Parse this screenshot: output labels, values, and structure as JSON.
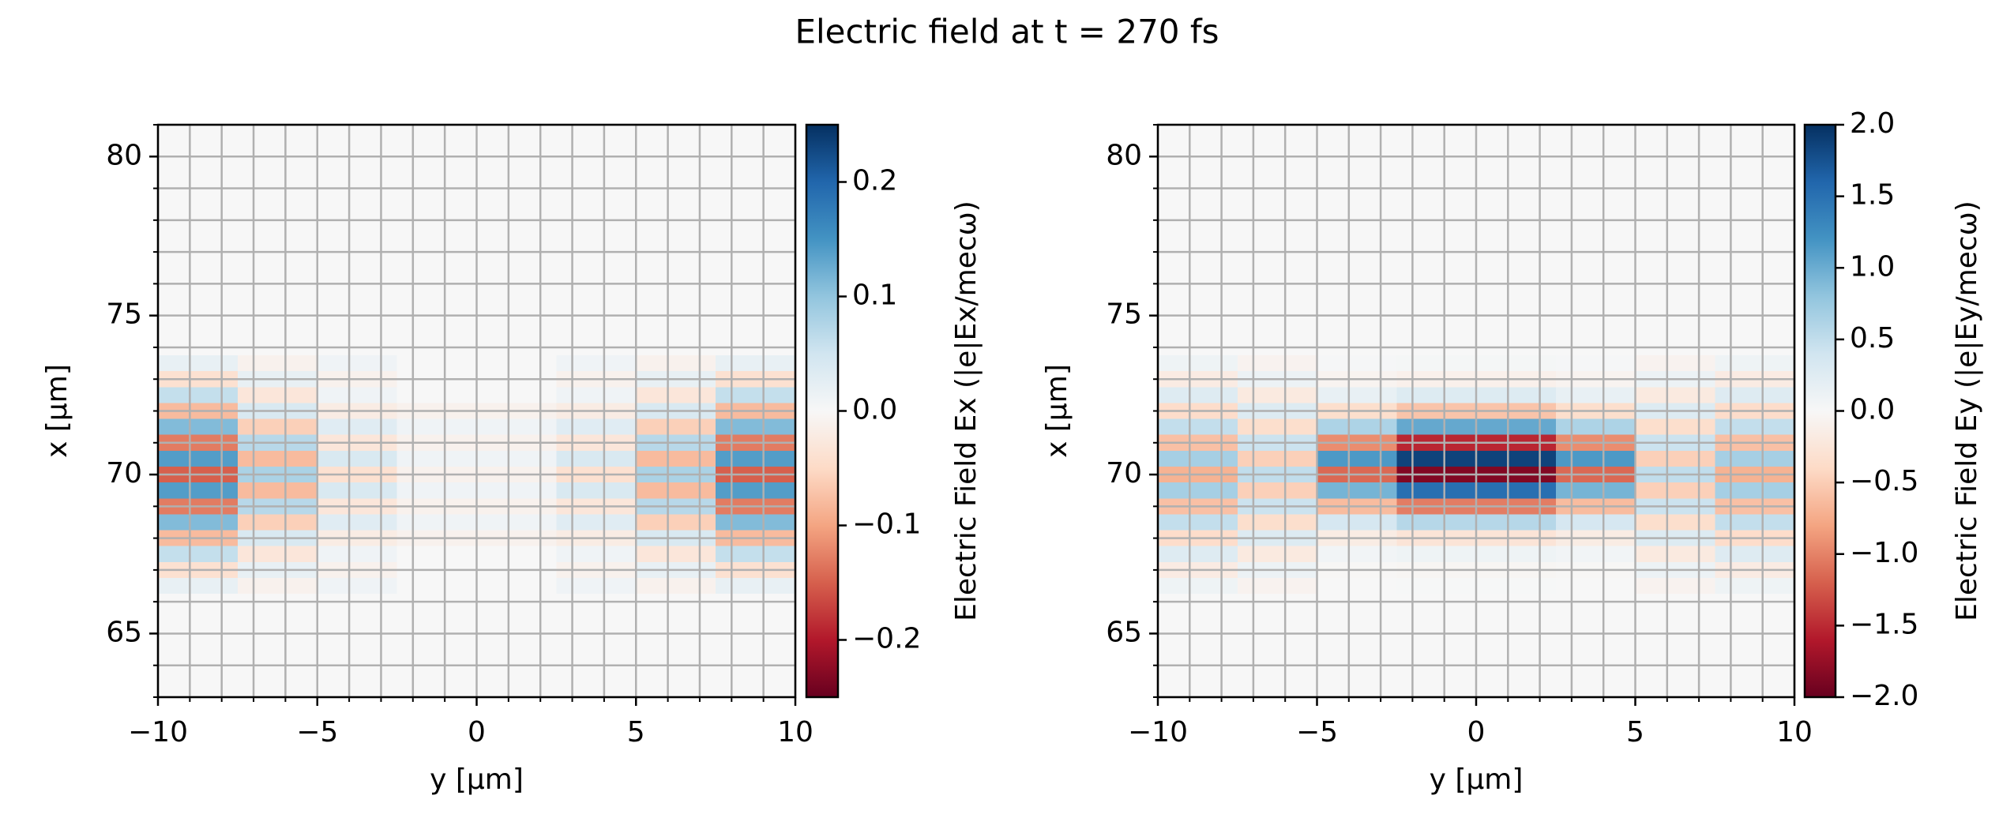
{
  "title": "Electric field at t = 270 fs",
  "chart_data": [
    {
      "type": "heatmap",
      "colormap": "RdBu",
      "xlabel": "y [µm]",
      "ylabel": "x [µm]",
      "colorbar_label": "Electric Field Ex (|e|Ex/mecω)",
      "xlim": [
        -10,
        10
      ],
      "ylim": [
        63,
        81
      ],
      "xticks": [
        {
          "value": -10,
          "label": "−10"
        },
        {
          "value": -5,
          "label": "−5"
        },
        0,
        5,
        10
      ],
      "yticks": [
        65,
        70,
        75,
        80
      ],
      "xminorticks": [
        -10,
        -9,
        -8,
        -7,
        -6,
        -5,
        -4,
        -3,
        -2,
        -1,
        0,
        1,
        2,
        3,
        4,
        5,
        6,
        7,
        8,
        9,
        10
      ],
      "yminorticks": [
        63,
        64,
        65,
        66,
        67,
        68,
        69,
        70,
        71,
        72,
        73,
        74,
        75,
        76,
        77,
        78,
        79,
        80,
        81
      ],
      "grid": true,
      "clim": [
        -0.25,
        0.25
      ],
      "cticks": [
        {
          "value": -0.2,
          "label": "−0.2"
        },
        {
          "value": -0.1,
          "label": "−0.1"
        },
        {
          "value": 0,
          "label": "0.0"
        },
        0.1,
        0.2
      ],
      "x": [
        -8.75,
        -6.25,
        -3.75,
        -1.25,
        1.25,
        3.75,
        6.25,
        8.75
      ],
      "y": [
        66.5,
        67,
        67.5,
        68,
        68.5,
        69,
        69.5,
        70,
        70.5,
        71,
        71.5,
        72,
        72.5,
        73,
        73.5
      ],
      "values": [
        [
          0.02,
          -0.01,
          0.01,
          0,
          0,
          0.01,
          -0.01,
          0.02
        ],
        [
          -0.04,
          0.02,
          -0.01,
          0,
          0,
          -0.01,
          0.02,
          -0.04
        ],
        [
          0.06,
          -0.03,
          0.01,
          0,
          0,
          0.01,
          -0.03,
          0.06
        ],
        [
          -0.08,
          0.04,
          -0.02,
          -0.01,
          -0.01,
          -0.02,
          0.04,
          -0.08
        ],
        [
          0.11,
          -0.06,
          0.03,
          0.01,
          0.01,
          0.03,
          -0.06,
          0.11
        ],
        [
          -0.13,
          0.07,
          -0.03,
          -0.01,
          -0.01,
          -0.03,
          0.07,
          -0.13
        ],
        [
          0.14,
          -0.08,
          0.04,
          0.01,
          0.01,
          0.04,
          -0.08,
          0.14
        ],
        [
          -0.15,
          0.08,
          -0.04,
          -0.01,
          -0.01,
          -0.04,
          0.08,
          -0.15
        ],
        [
          0.14,
          -0.08,
          0.04,
          0.01,
          0.01,
          0.04,
          -0.08,
          0.14
        ],
        [
          -0.13,
          0.07,
          -0.03,
          -0.01,
          -0.01,
          -0.03,
          0.07,
          -0.13
        ],
        [
          0.11,
          -0.06,
          0.03,
          0.01,
          0.01,
          0.03,
          -0.06,
          0.11
        ],
        [
          -0.08,
          0.04,
          -0.02,
          -0.01,
          -0.01,
          -0.02,
          0.04,
          -0.08
        ],
        [
          0.06,
          -0.03,
          0.01,
          0,
          0,
          0.01,
          -0.03,
          0.06
        ],
        [
          -0.04,
          0.02,
          -0.01,
          0,
          0,
          -0.01,
          0.02,
          -0.04
        ],
        [
          0.02,
          -0.01,
          0.01,
          0,
          0,
          0.01,
          -0.01,
          0.02
        ]
      ]
    },
    {
      "type": "heatmap",
      "colormap": "RdBu",
      "xlabel": "y [µm]",
      "ylabel": "x [µm]",
      "colorbar_label": "Electric Field Ey (|e|Ey/mecω)",
      "xlim": [
        -10,
        10
      ],
      "ylim": [
        63,
        81
      ],
      "xticks": [
        {
          "value": -10,
          "label": "−10"
        },
        {
          "value": -5,
          "label": "−5"
        },
        0,
        5,
        10
      ],
      "yticks": [
        65,
        70,
        75,
        80
      ],
      "xminorticks": [
        -10,
        -9,
        -8,
        -7,
        -6,
        -5,
        -4,
        -3,
        -2,
        -1,
        0,
        1,
        2,
        3,
        4,
        5,
        6,
        7,
        8,
        9,
        10
      ],
      "yminorticks": [
        63,
        64,
        65,
        66,
        67,
        68,
        69,
        70,
        71,
        72,
        73,
        74,
        75,
        76,
        77,
        78,
        79,
        80,
        81
      ],
      "grid": true,
      "clim": [
        -2,
        2
      ],
      "cticks": [
        {
          "value": -2,
          "label": "−2.0"
        },
        {
          "value": -1.5,
          "label": "−1.5"
        },
        {
          "value": -1,
          "label": "−1.0"
        },
        {
          "value": -0.5,
          "label": "−0.5"
        },
        {
          "value": 0,
          "label": "0.0"
        },
        0.5,
        {
          "value": 1,
          "label": "1.0"
        },
        1.5,
        {
          "value": 2,
          "label": "2.0"
        }
      ],
      "x": [
        -8.75,
        -6.25,
        -3.75,
        -1.25,
        1.25,
        3.75,
        6.25,
        8.75
      ],
      "y": [
        66.5,
        67,
        67.5,
        68,
        68.5,
        69,
        69.5,
        70,
        70.5,
        71,
        71.5,
        72,
        72.5,
        73,
        73.5
      ],
      "values": [
        [
          0.1,
          -0.07,
          0,
          0.01,
          0.01,
          0,
          -0.07,
          0.1
        ],
        [
          -0.17,
          0.12,
          -0.02,
          -0.03,
          -0.03,
          -0.02,
          0.12,
          -0.17
        ],
        [
          0.26,
          -0.19,
          0.06,
          0.1,
          0.1,
          0.06,
          -0.19,
          0.26
        ],
        [
          -0.37,
          0.27,
          -0.16,
          -0.27,
          -0.27,
          -0.16,
          0.27,
          -0.37
        ],
        [
          0.49,
          -0.35,
          0.35,
          0.57,
          0.57,
          0.35,
          -0.35,
          0.49
        ],
        [
          -0.6,
          0.43,
          -0.63,
          -1.03,
          -1.03,
          -0.63,
          0.43,
          -0.6
        ],
        [
          0.67,
          -0.48,
          0.94,
          1.52,
          1.52,
          0.94,
          -0.48,
          0.67
        ],
        [
          -0.7,
          0.5,
          -1.15,
          -1.86,
          -1.86,
          -1.15,
          0.5,
          -0.7
        ],
        [
          0.67,
          -0.48,
          1.15,
          1.86,
          1.86,
          1.15,
          -0.48,
          0.67
        ],
        [
          -0.6,
          0.43,
          -0.94,
          -1.52,
          -1.52,
          -0.94,
          0.43,
          -0.6
        ],
        [
          0.49,
          -0.35,
          0.63,
          1.03,
          1.03,
          0.63,
          -0.35,
          0.49
        ],
        [
          -0.37,
          0.27,
          -0.35,
          -0.57,
          -0.57,
          -0.35,
          0.27,
          -0.37
        ],
        [
          0.26,
          -0.19,
          0.16,
          0.27,
          0.27,
          0.16,
          -0.19,
          0.26
        ],
        [
          -0.17,
          0.12,
          -0.06,
          -0.1,
          -0.1,
          -0.06,
          0.12,
          -0.17
        ],
        [
          0.1,
          -0.07,
          0.02,
          0.03,
          0.03,
          0.02,
          -0.07,
          0.1
        ]
      ]
    }
  ]
}
